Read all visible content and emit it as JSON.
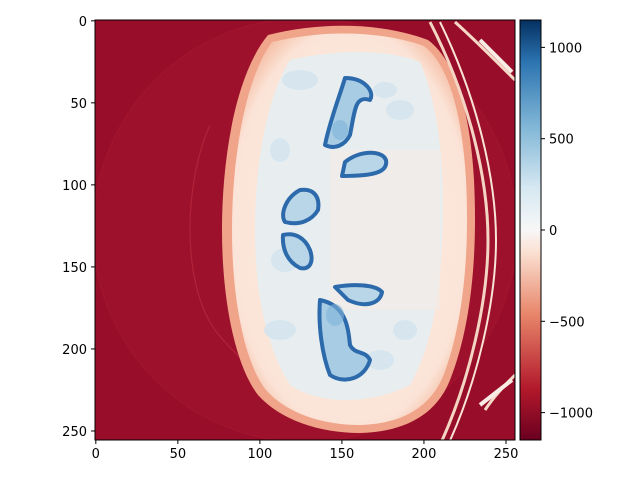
{
  "image": {
    "description_colormap": "RdBu",
    "x_axis": {
      "ticks": [
        "0",
        "50",
        "100",
        "150",
        "200",
        "250"
      ],
      "range": [
        0,
        255
      ]
    },
    "y_axis": {
      "ticks": [
        "0",
        "50",
        "100",
        "150",
        "200",
        "250"
      ],
      "range": [
        0,
        255
      ]
    }
  },
  "colorbar": {
    "ticks": [
      "1000",
      "500",
      "0",
      "−500",
      "−1000"
    ],
    "range": [
      -1150,
      1150
    ],
    "colors": {
      "low": "#8b0b26",
      "mid": "#f7f7f7",
      "high": "#053061"
    }
  }
}
